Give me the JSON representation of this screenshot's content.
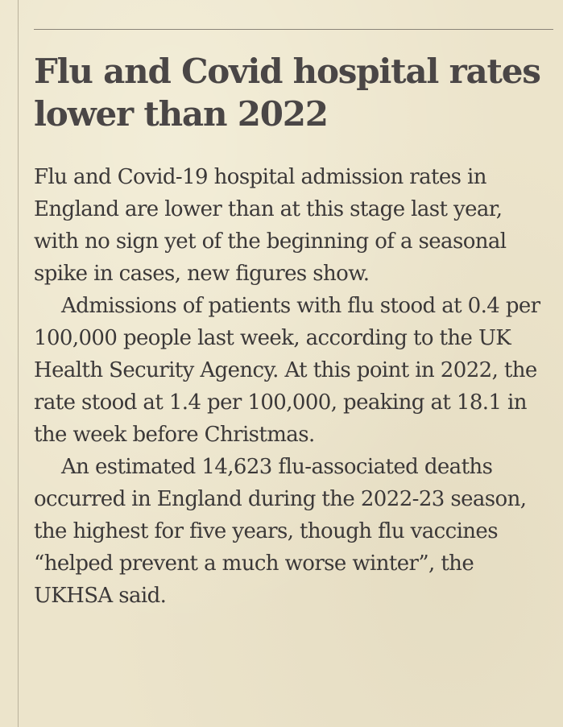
{
  "article": {
    "headline": "Flu and Covid hospital rates lower than 2022",
    "paragraphs": [
      "Flu and Covid-19 hospital admission rates in England are lower than at this stage last year, with no sign yet of the beginning of a seasonal spike in cases, new figures show.",
      "Admissions of patients with flu stood at 0.4 per 100,000 people last week, according to the UK Health Security Agency. At this point in 2022, the rate stood at 1.4 per 100,000, peaking at 18.1 in the week before Christmas.",
      "An estimated 14,623 flu-associated deaths occurred in England during the 2022-23 season, the highest for five years, though flu vaccines “helped prevent a much worse winter”, the UKHSA said."
    ]
  }
}
